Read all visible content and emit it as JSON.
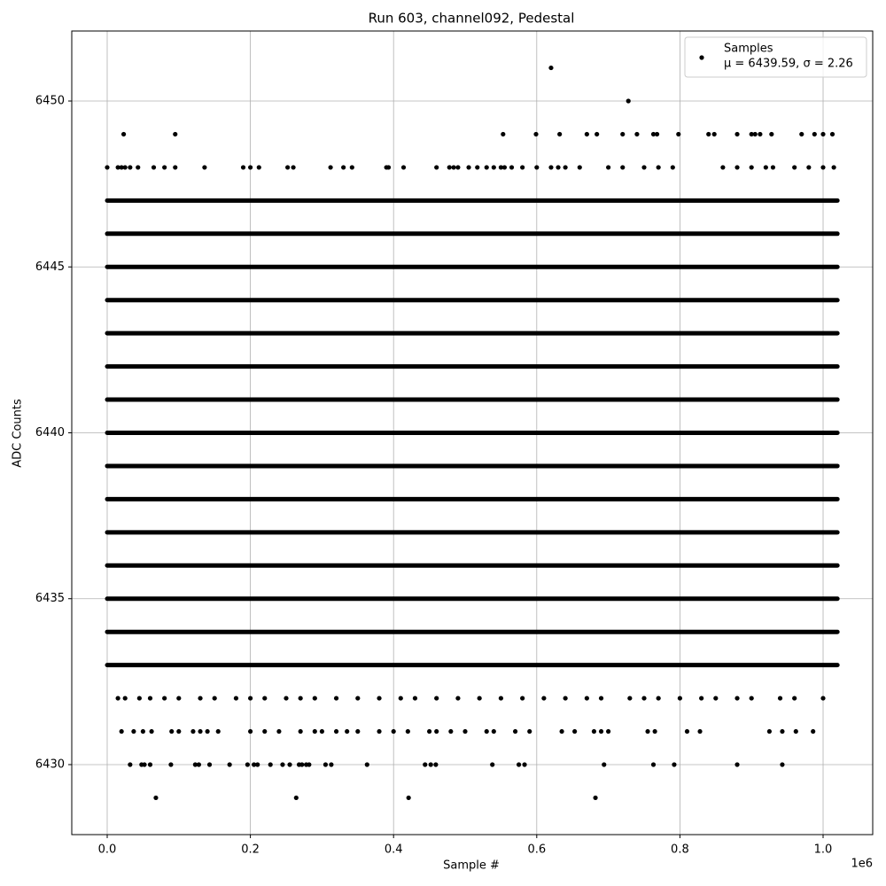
{
  "chart_data": {
    "type": "scatter",
    "title": "Run 603, channel092, Pedestal",
    "xlabel": "Sample #",
    "ylabel": "ADC Counts",
    "x_offset_label": "1e6",
    "xlim": [
      -49500,
      1069300
    ],
    "ylim": [
      6427.89,
      6452.11
    ],
    "xticks": [
      {
        "value": 0,
        "label": "0.0"
      },
      {
        "value": 200000,
        "label": "0.2"
      },
      {
        "value": 400000,
        "label": "0.4"
      },
      {
        "value": 600000,
        "label": "0.6"
      },
      {
        "value": 800000,
        "label": "0.8"
      },
      {
        "value": 1000000,
        "label": "1.0"
      }
    ],
    "yticks": [
      6430,
      6435,
      6440,
      6445,
      6450
    ],
    "grid": true,
    "legend": "upper right",
    "series": [
      {
        "name": "Samples",
        "label2": "μ = 6439.59, σ = 2.26",
        "color": "#000000",
        "bands": {
          "x_range": [
            0,
            1020000
          ],
          "values": [
            6433,
            6434,
            6435,
            6436,
            6437,
            6438,
            6439,
            6440,
            6441,
            6442,
            6443,
            6444,
            6445,
            6446,
            6447
          ]
        },
        "points": [
          {
            "y": 6451,
            "x": [
              620000.0
            ]
          },
          {
            "y": 6450,
            "x": [
              728000.0
            ]
          },
          {
            "y": 6449,
            "x": [
              23000.0,
              95000.0,
              553000.0,
              599000.0,
              632000.0,
              670000.0,
              684000.0,
              720000.0,
              740000.0,
              763000.0,
              768000.0,
              798000.0,
              840000.0,
              848000.0,
              880000.0,
              900000.0,
              905000.0,
              912000.0,
              928000.0,
              970000.0,
              988000.0,
              1000000.0,
              1013000.0
            ]
          },
          {
            "y": 6448,
            "x": [
              0.0,
              15000.0,
              20000.0,
              25000.0,
              32000.0,
              43000.0,
              65000.0,
              80000.0,
              95000.0,
              136000.0,
              190000.0,
              200000.0,
              212000.0,
              252000.0,
              260000.0,
              312000.0,
              330000.0,
              342000.0,
              390000.0,
              393000.0,
              414000.0,
              460000.0,
              478000.0,
              484000.0,
              490000.0,
              505000.0,
              517000.0,
              530000.0,
              540000.0,
              550000.0,
              555000.0,
              565000.0,
              580000.0,
              600000.0,
              620000.0,
              630000.0,
              640000.0,
              660000.0,
              700000.0,
              720000.0,
              750000.0,
              770000.0,
              790000.0,
              860000.0,
              880000.0,
              900000.0,
              920000.0,
              930000.0,
              960000.0,
              980000.0,
              1000000.0,
              1015000.0
            ]
          },
          {
            "y": 6432,
            "x": [
              15000.0,
              25000.0,
              45000.0,
              60000.0,
              80000.0,
              100000.0,
              130000.0,
              150000.0,
              180000.0,
              200000.0,
              220000.0,
              250000.0,
              270000.0,
              290000.0,
              320000.0,
              350000.0,
              380000.0,
              410000.0,
              430000.0,
              460000.0,
              490000.0,
              520000.0,
              550000.0,
              580000.0,
              610000.0,
              640000.0,
              670000.0,
              690000.0,
              730000.0,
              750000.0,
              770000.0,
              800000.0,
              830000.0,
              850000.0,
              880000.0,
              900000.0,
              940000.0,
              960000.0,
              1000000.0
            ]
          },
          {
            "y": 6431,
            "x": [
              20000.0,
              37000.0,
              50000.0,
              62000.0,
              90000.0,
              100000.0,
              120000.0,
              130000.0,
              140000.0,
              155000.0,
              200000.0,
              220000.0,
              240000.0,
              270000.0,
              290000.0,
              300000.0,
              320000.0,
              335000.0,
              350000.0,
              380000.0,
              400000.0,
              420000.0,
              450000.0,
              460000.0,
              480000.0,
              500000.0,
              530000.0,
              540000.0,
              570000.0,
              590000.0,
              635000.0,
              653000.0,
              680000.0,
              690000.0,
              700000.0,
              755000.0,
              765000.0,
              810000.0,
              828000.0,
              925000.0,
              943000.0,
              962000.0,
              986000.0
            ]
          },
          {
            "y": 6430,
            "x": [
              32000.0,
              48000.0,
              52000.0,
              60000.0,
              89000.0,
              123000.0,
              128000.0,
              143000.0,
              171000.0,
              196000.0,
              205000.0,
              210000.0,
              228000.0,
              245000.0,
              255000.0,
              268000.0,
              272000.0,
              278000.0,
              282000.0,
              305000.0,
              313000.0,
              363000.0,
              444000.0,
              452000.0,
              459000.0,
              538000.0,
              575000.0,
              583000.0,
              694000.0,
              763000.0,
              792000.0,
              880000.0,
              943000.0
            ]
          },
          {
            "y": 6429,
            "x": [
              68000.0,
              264000.0,
              421000.0,
              682000.0
            ]
          }
        ]
      }
    ]
  }
}
